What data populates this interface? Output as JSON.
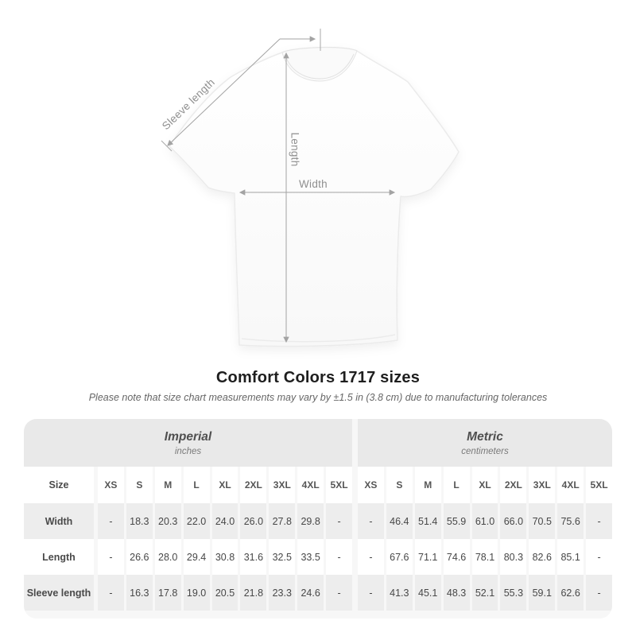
{
  "page": {
    "title": "Comfort Colors 1717 sizes",
    "subtitle": "Please note that size chart measurements may vary by ±1.5 in (3.8 cm) due to manufacturing tolerances"
  },
  "diagram": {
    "labels": {
      "sleeve": "Sleeve length",
      "length": "Length",
      "width": "Width"
    }
  },
  "table": {
    "groups": [
      {
        "title": "Imperial",
        "unit": "inches"
      },
      {
        "title": "Metric",
        "unit": "centimeters"
      }
    ],
    "size_column_label": "Size",
    "sizes": [
      "XS",
      "S",
      "M",
      "L",
      "XL",
      "2XL",
      "3XL",
      "4XL",
      "5XL"
    ],
    "rows": [
      {
        "label": "Width",
        "imperial": [
          "-",
          "18.3",
          "20.3",
          "22.0",
          "24.0",
          "26.0",
          "27.8",
          "29.8",
          "-"
        ],
        "metric": [
          "-",
          "46.4",
          "51.4",
          "55.9",
          "61.0",
          "66.0",
          "70.5",
          "75.6",
          "-"
        ]
      },
      {
        "label": "Length",
        "imperial": [
          "-",
          "26.6",
          "28.0",
          "29.4",
          "30.8",
          "31.6",
          "32.5",
          "33.5",
          "-"
        ],
        "metric": [
          "-",
          "67.6",
          "71.1",
          "74.6",
          "78.1",
          "80.3",
          "82.6",
          "85.1",
          "-"
        ]
      },
      {
        "label": "Sleeve length",
        "imperial": [
          "-",
          "16.3",
          "17.8",
          "19.0",
          "20.5",
          "21.8",
          "23.3",
          "24.6",
          "-"
        ],
        "metric": [
          "-",
          "41.3",
          "45.1",
          "48.3",
          "52.1",
          "55.3",
          "59.1",
          "62.6",
          "-"
        ]
      }
    ]
  },
  "colors": {
    "header_band": "#e9e9e9",
    "row_stripe": "#ededed",
    "annotation_gray": "#8f8f8f",
    "arrow_gray": "#a3a3a3"
  }
}
